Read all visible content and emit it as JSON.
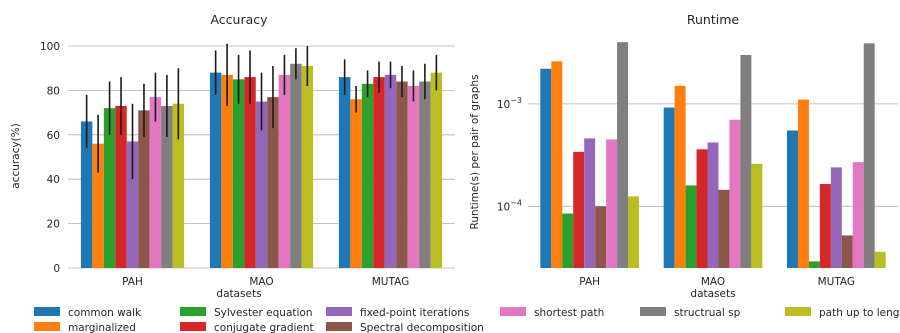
{
  "chart_data": [
    {
      "type": "bar",
      "title": "Accuracy",
      "xlabel": "datasets",
      "ylabel": "accuracy(%)",
      "ylim": [
        0,
        100
      ],
      "yticks": [
        0,
        20,
        40,
        60,
        80,
        100
      ],
      "grid": "horizontal",
      "categories": [
        "PAH",
        "MAO",
        "MUTAG"
      ],
      "series": [
        {
          "name": "common walk",
          "values": [
            66,
            88,
            86
          ],
          "err": [
            12,
            10,
            8
          ]
        },
        {
          "name": "marginalized",
          "values": [
            56,
            87,
            76
          ],
          "err": [
            13,
            14,
            6
          ]
        },
        {
          "name": "Sylvester equation",
          "values": [
            72,
            85,
            83
          ],
          "err": [
            12,
            11,
            6
          ]
        },
        {
          "name": "conjugate gradient",
          "values": [
            73,
            86,
            86
          ],
          "err": [
            13,
            12,
            7
          ]
        },
        {
          "name": "fixed-point iterations",
          "values": [
            57,
            75,
            87
          ],
          "err": [
            17,
            13,
            6
          ]
        },
        {
          "name": "Spectral decomposition",
          "values": [
            71,
            77,
            84
          ],
          "err": [
            12,
            14,
            7
          ]
        },
        {
          "name": "shortest path",
          "values": [
            77,
            87,
            82
          ],
          "err": [
            11,
            9,
            7
          ]
        },
        {
          "name": "structrual sp",
          "values": [
            73,
            92,
            84
          ],
          "err": [
            14,
            7,
            8
          ]
        },
        {
          "name": "path up to length h",
          "values": [
            74,
            91,
            88
          ],
          "err": [
            16,
            9,
            8
          ]
        }
      ]
    },
    {
      "type": "bar",
      "title": "Runtime",
      "xlabel": "datasets",
      "ylabel": "Runtime(s) per pair of graphs",
      "yscale": "log",
      "ylim": [
        2.5e-05,
        0.0042
      ],
      "yticks": [
        0.0001,
        0.001
      ],
      "yticklabels": [
        "10^-4",
        "10^-3"
      ],
      "grid": "horizontal",
      "categories": [
        "PAH",
        "MAO",
        "MUTAG"
      ],
      "series": [
        {
          "name": "common walk",
          "values": [
            0.0022,
            0.00092,
            0.00055
          ]
        },
        {
          "name": "marginalized",
          "values": [
            0.0026,
            0.0015,
            0.0011
          ]
        },
        {
          "name": "Sylvester equation",
          "values": [
            8.5e-05,
            0.00016,
            2.9e-05
          ]
        },
        {
          "name": "conjugate gradient",
          "values": [
            0.00034,
            0.00036,
            0.000165
          ]
        },
        {
          "name": "fixed-point iterations",
          "values": [
            0.00046,
            0.00042,
            0.00024
          ]
        },
        {
          "name": "Spectral decomposition",
          "values": [
            0.0001,
            0.000145,
            5.2e-05
          ]
        },
        {
          "name": "shortest path",
          "values": [
            0.00045,
            0.0007,
            0.00027
          ]
        },
        {
          "name": "structrual sp",
          "values": [
            0.004,
            0.003,
            0.0039
          ]
        },
        {
          "name": "path up to length h",
          "values": [
            0.000125,
            0.00026,
            3.6e-05
          ]
        }
      ]
    }
  ],
  "legend": {
    "placement": "bottom",
    "entries": [
      {
        "label": "common walk",
        "color": "#1f77b4"
      },
      {
        "label": "marginalized",
        "color": "#ff7f0e"
      },
      {
        "label": "Sylvester equation",
        "color": "#2ca02c"
      },
      {
        "label": "conjugate gradient",
        "color": "#d62728"
      },
      {
        "label": "fixed-point iterations",
        "color": "#9467bd"
      },
      {
        "label": "Spectral decomposition",
        "color": "#8c564b"
      },
      {
        "label": "shortest path",
        "color": "#e377c2"
      },
      {
        "label": "structrual sp",
        "color": "#7f7f7f"
      },
      {
        "label": "path up to length h",
        "color": "#bcbd22"
      }
    ]
  }
}
